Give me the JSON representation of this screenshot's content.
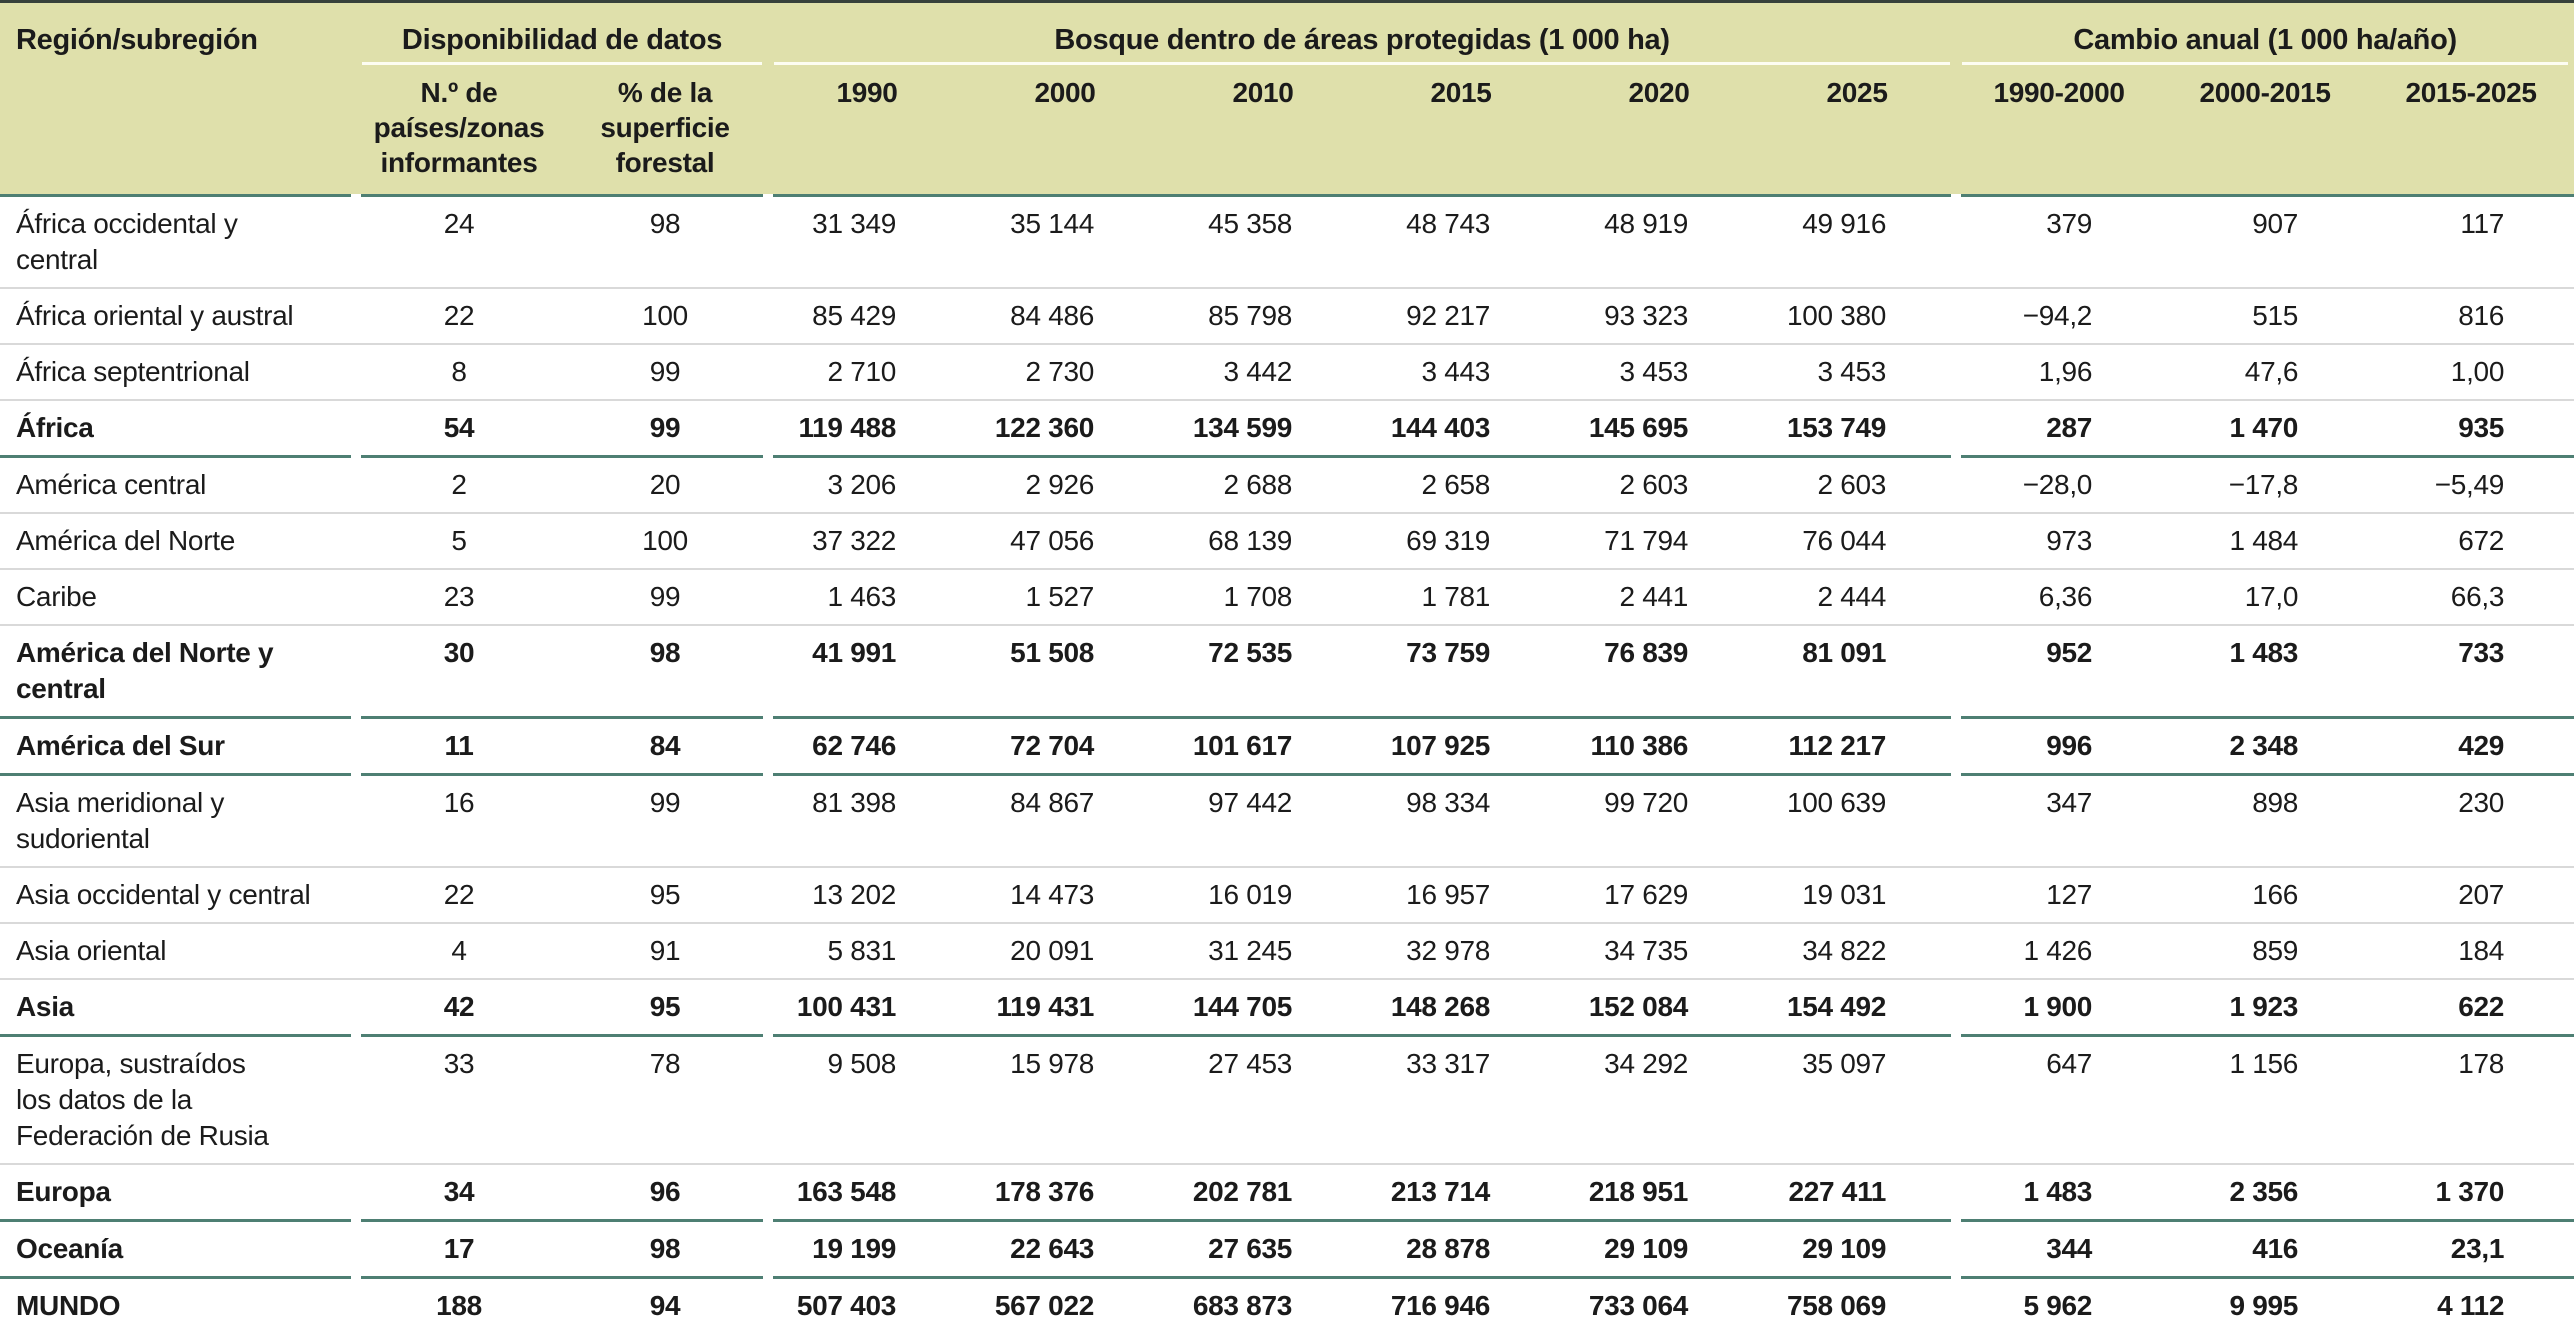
{
  "colors": {
    "header_bg": "#dfe0ab",
    "rule_teal": "#4e7f73",
    "rule_teal_light": "#cfe3df",
    "rule_top": "#37413b",
    "row_line": "#d9d9d9",
    "header_divider": "#fdfdf2",
    "text": "#1b1b1b"
  },
  "chart_data": {
    "type": "table",
    "header": {
      "region": "Región/subregión",
      "groups": [
        {
          "label": "Disponibilidad de datos",
          "sub": [
            "N.º de países/zonas informantes",
            "% de la superficie forestal"
          ]
        },
        {
          "label": "Bosque dentro de áreas protegidas (1 000 ha)",
          "sub": [
            "1990",
            "2000",
            "2010",
            "2015",
            "2020",
            "2025"
          ]
        },
        {
          "label": "Cambio anual (1 000 ha/año)",
          "sub": [
            "1990-2000",
            "2000-2015",
            "2015-2025"
          ]
        }
      ]
    },
    "rows": [
      {
        "region": "África occidental y\ncentral",
        "bold": false,
        "values": [
          "24",
          "98",
          "31 349",
          "35 144",
          "45 358",
          "48 743",
          "48 919",
          "49 916",
          "379",
          "907",
          "117"
        ]
      },
      {
        "region": "África oriental y austral",
        "bold": false,
        "values": [
          "22",
          "100",
          "85 429",
          "84 486",
          "85 798",
          "92 217",
          "93 323",
          "100 380",
          "−94,2",
          "515",
          "816"
        ]
      },
      {
        "region": "África septentrional",
        "bold": false,
        "values": [
          "8",
          "99",
          "2 710",
          "2 730",
          "3 442",
          "3 443",
          "3 453",
          "3 453",
          "1,96",
          "47,6",
          "1,00"
        ]
      },
      {
        "region": "África",
        "bold": true,
        "values": [
          "54",
          "99",
          "119 488",
          "122 360",
          "134 599",
          "144 403",
          "145 695",
          "153 749",
          "287",
          "1 470",
          "935"
        ]
      },
      {
        "region": "América central",
        "bold": false,
        "values": [
          "2",
          "20",
          "3 206",
          "2 926",
          "2 688",
          "2 658",
          "2 603",
          "2 603",
          "−28,0",
          "−17,8",
          "−5,49"
        ]
      },
      {
        "region": "América del Norte",
        "bold": false,
        "values": [
          "5",
          "100",
          "37 322",
          "47 056",
          "68 139",
          "69 319",
          "71 794",
          "76 044",
          "973",
          "1 484",
          "672"
        ]
      },
      {
        "region": "Caribe",
        "bold": false,
        "values": [
          "23",
          "99",
          "1 463",
          "1 527",
          "1 708",
          "1 781",
          "2 441",
          "2 444",
          "6,36",
          "17,0",
          "66,3"
        ]
      },
      {
        "region": "América del Norte y\ncentral",
        "bold": true,
        "values": [
          "30",
          "98",
          "41 991",
          "51 508",
          "72 535",
          "73 759",
          "76 839",
          "81 091",
          "952",
          "1 483",
          "733"
        ]
      },
      {
        "region": "América del Sur",
        "bold": true,
        "values": [
          "11",
          "84",
          "62 746",
          "72 704",
          "101 617",
          "107 925",
          "110 386",
          "112 217",
          "996",
          "2 348",
          "429"
        ]
      },
      {
        "region": "Asia meridional y\nsudoriental",
        "bold": false,
        "values": [
          "16",
          "99",
          "81 398",
          "84 867",
          "97 442",
          "98 334",
          "99 720",
          "100 639",
          "347",
          "898",
          "230"
        ]
      },
      {
        "region": "Asia occidental y central",
        "bold": false,
        "values": [
          "22",
          "95",
          "13 202",
          "14 473",
          "16 019",
          "16 957",
          "17 629",
          "19 031",
          "127",
          "166",
          "207"
        ]
      },
      {
        "region": "Asia oriental",
        "bold": false,
        "values": [
          "4",
          "91",
          "5 831",
          "20 091",
          "31 245",
          "32 978",
          "34 735",
          "34 822",
          "1 426",
          "859",
          "184"
        ]
      },
      {
        "region": "Asia",
        "bold": true,
        "values": [
          "42",
          "95",
          "100 431",
          "119 431",
          "144 705",
          "148 268",
          "152 084",
          "154 492",
          "1 900",
          "1 923",
          "622"
        ]
      },
      {
        "region": "Europa, sustraídos\nlos datos de la\nFederación de Rusia",
        "bold": false,
        "values": [
          "33",
          "78",
          "9 508",
          "15 978",
          "27 453",
          "33 317",
          "34 292",
          "35 097",
          "647",
          "1 156",
          "178"
        ]
      },
      {
        "region": "Europa",
        "bold": true,
        "values": [
          "34",
          "96",
          "163 548",
          "178 376",
          "202 781",
          "213 714",
          "218 951",
          "227 411",
          "1 483",
          "2 356",
          "1 370"
        ]
      },
      {
        "region": "Oceanía",
        "bold": true,
        "values": [
          "17",
          "98",
          "19 199",
          "22 643",
          "27 635",
          "28 878",
          "29 109",
          "29 109",
          "344",
          "416",
          "23,1"
        ]
      },
      {
        "region": "MUNDO",
        "bold": true,
        "values": [
          "188",
          "94",
          "507 403",
          "567 022",
          "683 873",
          "716 946",
          "733 064",
          "758 069",
          "5 962",
          "9 995",
          "4 112"
        ]
      }
    ]
  }
}
